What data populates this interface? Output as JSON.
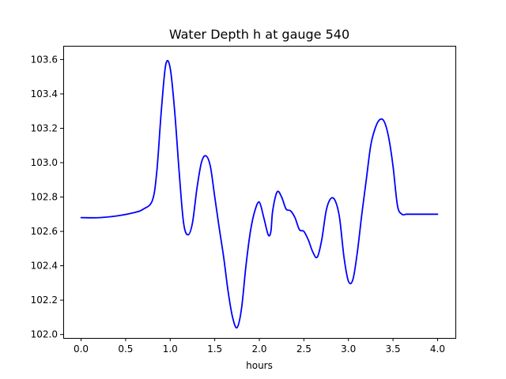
{
  "chart_data": {
    "type": "line",
    "title": "Water Depth h at gauge 540",
    "xlabel": "hours",
    "ylabel": "",
    "xlim": [
      -0.2,
      4.2
    ],
    "ylim": [
      101.98,
      103.68
    ],
    "xticks": [
      0.0,
      0.5,
      1.0,
      1.5,
      2.0,
      2.5,
      3.0,
      3.5,
      4.0
    ],
    "xtick_labels": [
      "0.0",
      "0.5",
      "1.0",
      "1.5",
      "2.0",
      "2.5",
      "3.0",
      "3.5",
      "4.0"
    ],
    "yticks": [
      102.0,
      102.2,
      102.4,
      102.6,
      102.8,
      103.0,
      103.2,
      103.4,
      103.6
    ],
    "ytick_labels": [
      "102.0",
      "102.2",
      "102.4",
      "102.6",
      "102.8",
      "103.0",
      "103.2",
      "103.4",
      "103.6"
    ],
    "grid": false,
    "series": [
      {
        "color": "#0000ff",
        "x": [
          0.0,
          0.2,
          0.4,
          0.6,
          0.7,
          0.8,
          0.85,
          0.9,
          0.95,
          1.0,
          1.05,
          1.1,
          1.15,
          1.2,
          1.25,
          1.3,
          1.35,
          1.4,
          1.45,
          1.5,
          1.55,
          1.6,
          1.65,
          1.7,
          1.75,
          1.8,
          1.85,
          1.9,
          1.95,
          2.0,
          2.05,
          2.1,
          2.13,
          2.15,
          2.2,
          2.25,
          2.3,
          2.35,
          2.4,
          2.45,
          2.5,
          2.55,
          2.6,
          2.65,
          2.7,
          2.75,
          2.8,
          2.85,
          2.9,
          2.95,
          3.0,
          3.05,
          3.1,
          3.15,
          3.2,
          3.25,
          3.3,
          3.35,
          3.4,
          3.45,
          3.5,
          3.55,
          3.6,
          3.65,
          3.7,
          3.75,
          3.8,
          3.85,
          3.9,
          3.95,
          4.0
        ],
        "values": [
          102.68,
          102.68,
          102.69,
          102.71,
          102.73,
          102.78,
          102.95,
          103.3,
          103.57,
          103.55,
          103.3,
          102.95,
          102.65,
          102.58,
          102.65,
          102.85,
          103.0,
          103.04,
          102.98,
          102.8,
          102.62,
          102.45,
          102.25,
          102.1,
          102.04,
          102.15,
          102.4,
          102.6,
          102.72,
          102.77,
          102.68,
          102.58,
          102.6,
          102.72,
          102.83,
          102.8,
          102.73,
          102.72,
          102.68,
          102.61,
          102.6,
          102.55,
          102.48,
          102.45,
          102.55,
          102.72,
          102.79,
          102.78,
          102.68,
          102.45,
          102.31,
          102.32,
          102.48,
          102.7,
          102.9,
          103.1,
          103.2,
          103.25,
          103.24,
          103.15,
          102.98,
          102.75,
          102.7,
          102.7,
          102.7,
          102.7,
          102.7,
          102.7,
          102.7,
          102.7,
          102.7
        ]
      }
    ]
  }
}
